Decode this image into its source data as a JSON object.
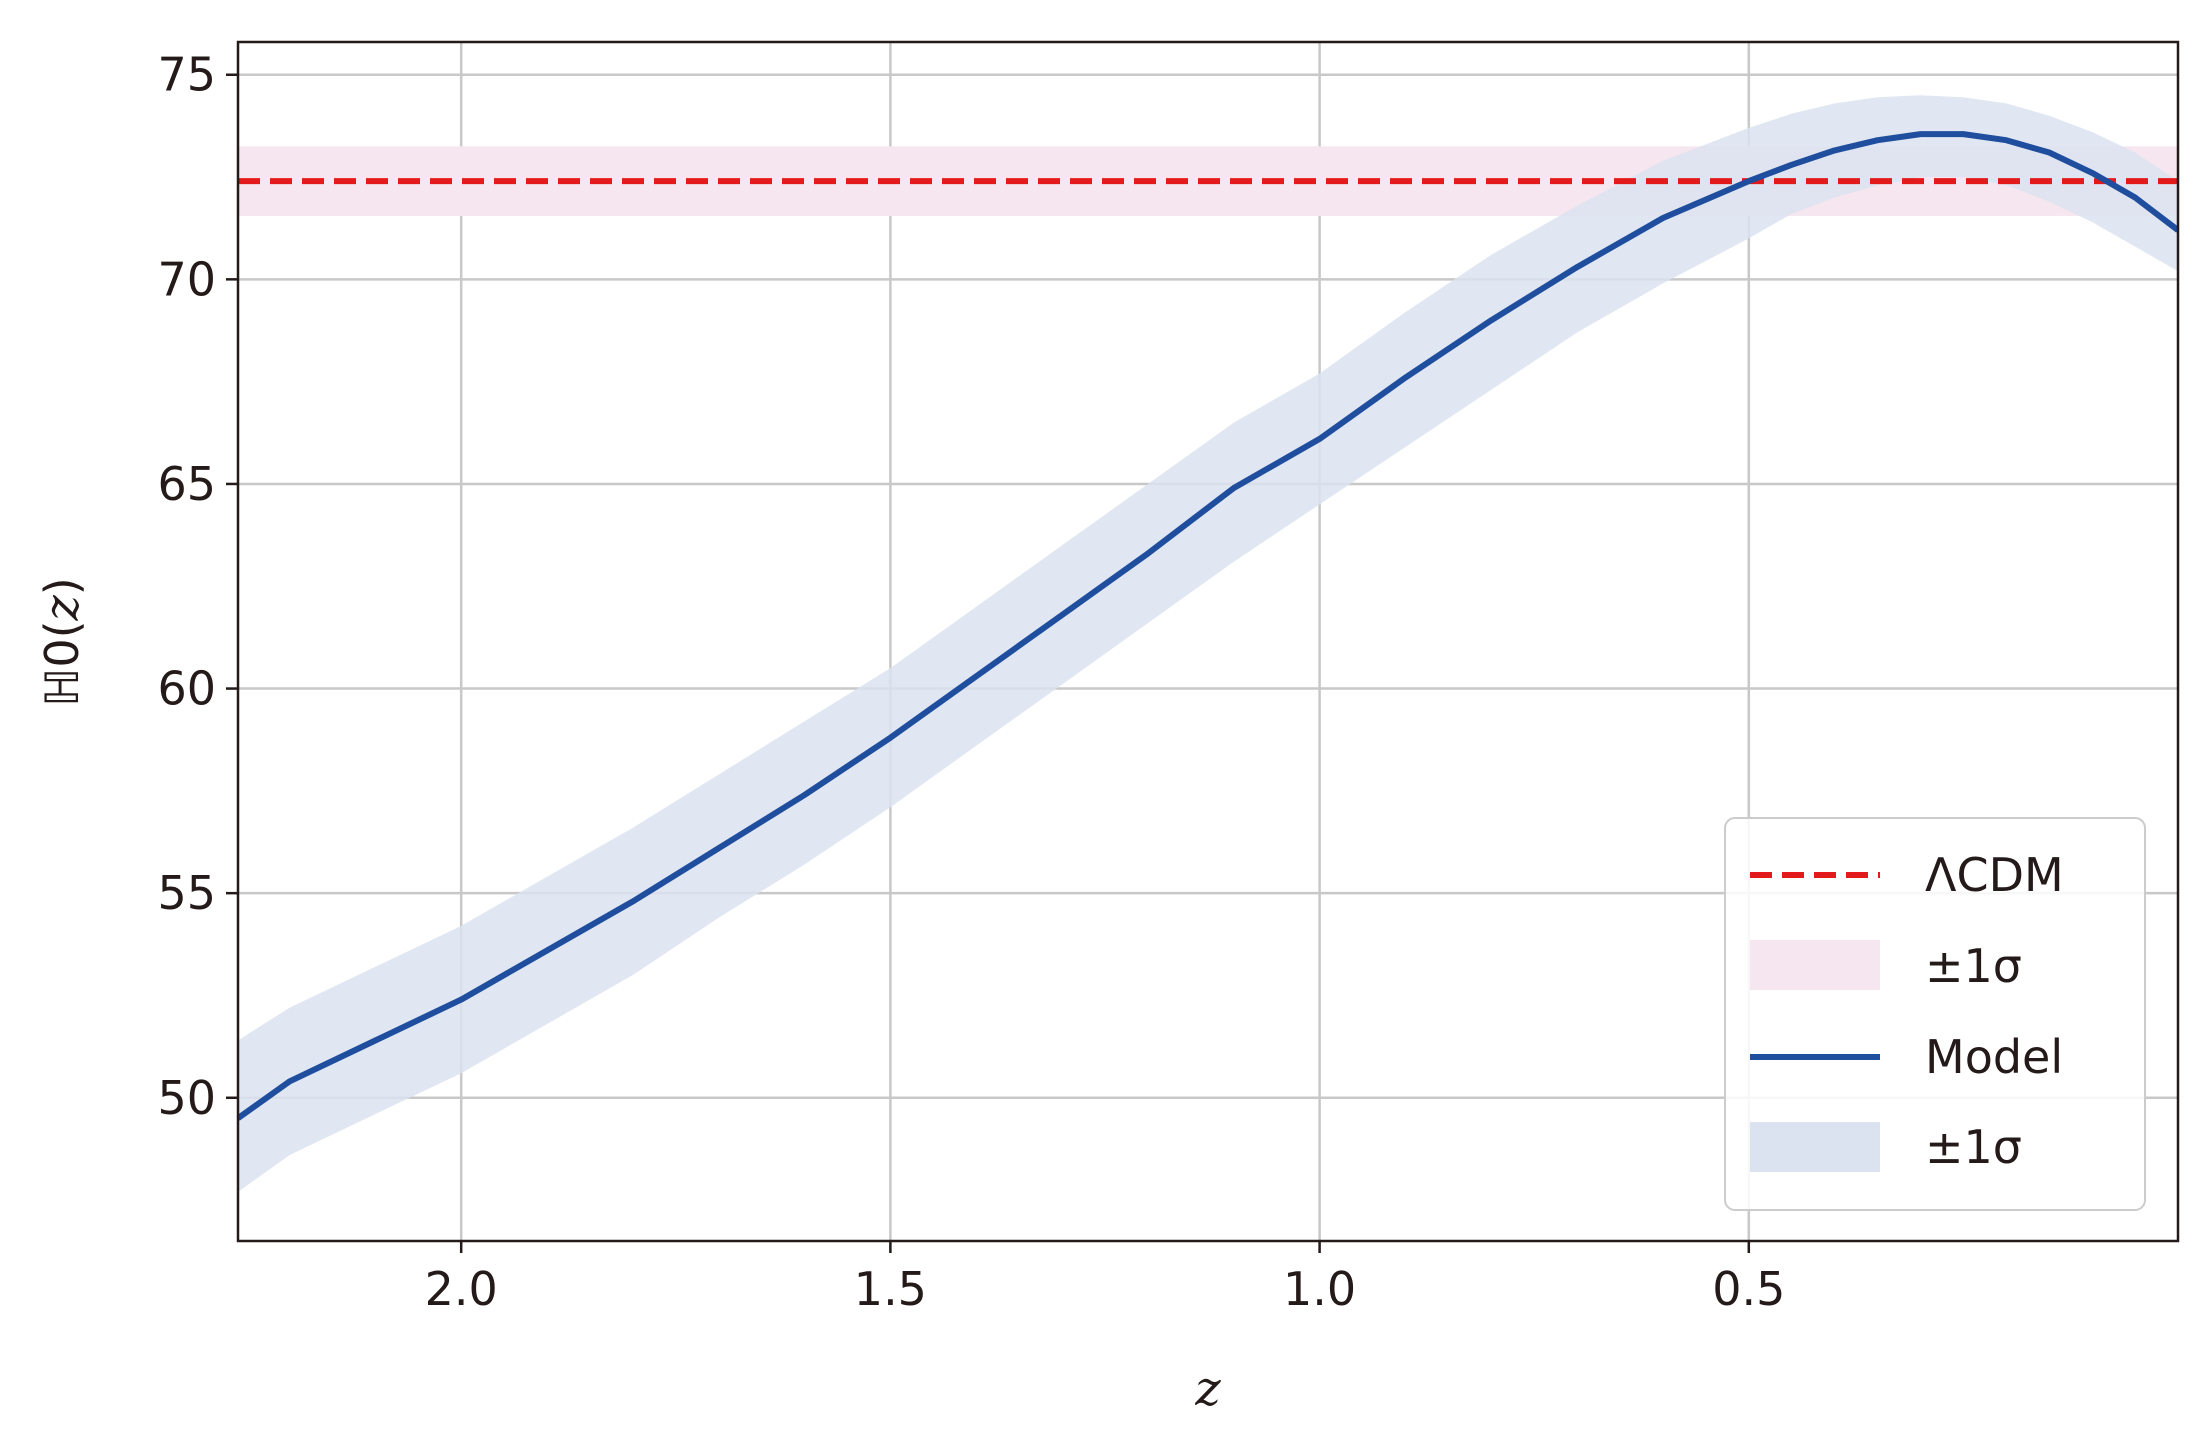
{
  "chart_data": {
    "type": "line",
    "title": "",
    "xlabel": "z",
    "ylabel_prefix": "ℍ0(",
    "ylabel_var": "z",
    "ylabel_suffix": ")",
    "xlim": [
      2.26,
      0.0
    ],
    "ylim": [
      46.5,
      75.8
    ],
    "x_inverted": true,
    "grid": true,
    "legend_position": "lower-right",
    "xticks": [
      {
        "value": 2.0,
        "label": "2.0"
      },
      {
        "value": 1.5,
        "label": "1.5"
      },
      {
        "value": 1.0,
        "label": "1.0"
      },
      {
        "value": 0.5,
        "label": "0.5"
      }
    ],
    "yticks": [
      {
        "value": 50,
        "label": "50"
      },
      {
        "value": 55,
        "label": "55"
      },
      {
        "value": 60,
        "label": "60"
      },
      {
        "value": 65,
        "label": "65"
      },
      {
        "value": 70,
        "label": "70"
      },
      {
        "value": 75,
        "label": "75"
      }
    ],
    "reference": {
      "name": "ΛCDM",
      "value": 72.4,
      "sigma": 0.85,
      "band_label": "±1σ",
      "color": "#e31a1c",
      "band_color": "#f5e6ef"
    },
    "model": {
      "name": "Model",
      "band_label": "±1σ",
      "color": "#1f4e9e",
      "band_color": "#dce3f0",
      "x": [
        2.26,
        2.2,
        2.1,
        2.0,
        1.9,
        1.8,
        1.7,
        1.6,
        1.5,
        1.4,
        1.3,
        1.2,
        1.1,
        1.0,
        0.9,
        0.8,
        0.7,
        0.6,
        0.5,
        0.45,
        0.4,
        0.35,
        0.3,
        0.25,
        0.2,
        0.15,
        0.1,
        0.05,
        0.0
      ],
      "y": [
        49.5,
        50.4,
        51.4,
        52.4,
        53.6,
        54.8,
        56.1,
        57.4,
        58.8,
        60.3,
        61.8,
        63.3,
        64.9,
        66.1,
        67.6,
        69.0,
        70.3,
        71.5,
        72.4,
        72.8,
        73.15,
        73.4,
        73.55,
        73.55,
        73.4,
        73.1,
        72.6,
        72.0,
        71.2
      ],
      "lower": [
        47.7,
        48.6,
        49.6,
        50.6,
        51.8,
        53.0,
        54.4,
        55.7,
        57.1,
        58.6,
        60.1,
        61.6,
        63.1,
        64.5,
        65.9,
        67.3,
        68.7,
        69.9,
        71.0,
        71.6,
        72.0,
        72.3,
        72.5,
        72.5,
        72.3,
        71.9,
        71.4,
        70.8,
        70.2
      ],
      "upper": [
        51.4,
        52.2,
        53.2,
        54.2,
        55.4,
        56.6,
        57.9,
        59.2,
        60.5,
        62.0,
        63.5,
        65.0,
        66.5,
        67.7,
        69.2,
        70.6,
        71.8,
        72.9,
        73.7,
        74.05,
        74.3,
        74.45,
        74.5,
        74.45,
        74.3,
        74.0,
        73.6,
        73.1,
        72.4
      ]
    }
  }
}
